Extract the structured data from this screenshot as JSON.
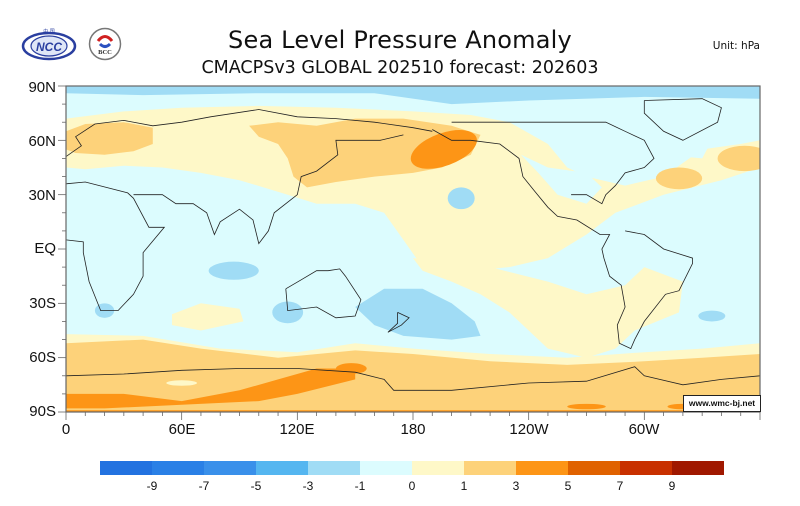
{
  "header": {
    "title": "Sea Level Pressure Anomaly",
    "subtitle": "CMACPSv3 GLOBAL 202510 forecast: 202603",
    "unit": "Unit:  hPa",
    "logos": [
      {
        "name": "ncc-logo",
        "text": "NCC"
      },
      {
        "name": "bcc-logo",
        "text": "BCC"
      }
    ]
  },
  "map": {
    "projection": "cylindrical-equidistant",
    "lon_range": [
      0,
      360
    ],
    "lat_range": [
      -90,
      90
    ],
    "y_ticks": [
      "90N",
      "60N",
      "30N",
      "EQ",
      "30S",
      "60S",
      "90S"
    ],
    "x_ticks": [
      "0",
      "60E",
      "120E",
      "180",
      "120W",
      "60W"
    ],
    "credit": "www.wmc-bj.net"
  },
  "legend": {
    "colors": [
      "#2272e0",
      "#2a80e6",
      "#3a90ea",
      "#55b6f0",
      "#a0dcf5",
      "#dcfcfe",
      "#fef8c8",
      "#fdd27a",
      "#fd9516",
      "#e06200",
      "#c83000",
      "#a01800"
    ],
    "labels": [
      "-9",
      "-7",
      "-5",
      "-3",
      "-1",
      "0",
      "1",
      "3",
      "5",
      "7",
      "9"
    ]
  },
  "chart_data": {
    "type": "heatmap",
    "title": "Sea Level Pressure Anomaly",
    "subtitle": "CMACPSv3 GLOBAL 202510 forecast: 202603",
    "unit": "hPa",
    "x_ticks": [
      "0",
      "60E",
      "120E",
      "180",
      "120W",
      "60W"
    ],
    "y_ticks": [
      "90N",
      "60N",
      "30N",
      "EQ",
      "30S",
      "60S",
      "90S"
    ],
    "levels": [
      -9,
      -7,
      -5,
      -3,
      -1,
      0,
      1,
      3,
      5,
      7,
      9
    ],
    "features": [
      {
        "region": "Arctic (north polar band)",
        "anomaly_range": "-3 to -1"
      },
      {
        "region": "Northern Europe / Scandinavia",
        "anomaly_range": "1 to 3"
      },
      {
        "region": "Siberia / Northern Eurasia",
        "anomaly_range": "0 to 3"
      },
      {
        "region": "Gulf of Alaska / Bering Sea",
        "anomaly_range": "3 to 5"
      },
      {
        "region": "North Pacific near Hawaii",
        "anomaly_range": "-3 to -1"
      },
      {
        "region": "North Atlantic off US East Coast",
        "anomaly_range": "1 to 3"
      },
      {
        "region": "Tropical Indian Ocean",
        "anomaly_range": "-1 to 0"
      },
      {
        "region": "South Indian Ocean patches",
        "anomaly_range": "-3 to -1"
      },
      {
        "region": "Tasman Sea / New Zealand",
        "anomaly_range": "-3 to -1"
      },
      {
        "region": "South-east Pacific",
        "anomaly_range": "0 to 1"
      },
      {
        "region": "South Atlantic patch",
        "anomaly_range": "-3 to -1"
      },
      {
        "region": "Southern Ocean / Antarctica",
        "anomaly_range": "1 to 5"
      }
    ]
  }
}
